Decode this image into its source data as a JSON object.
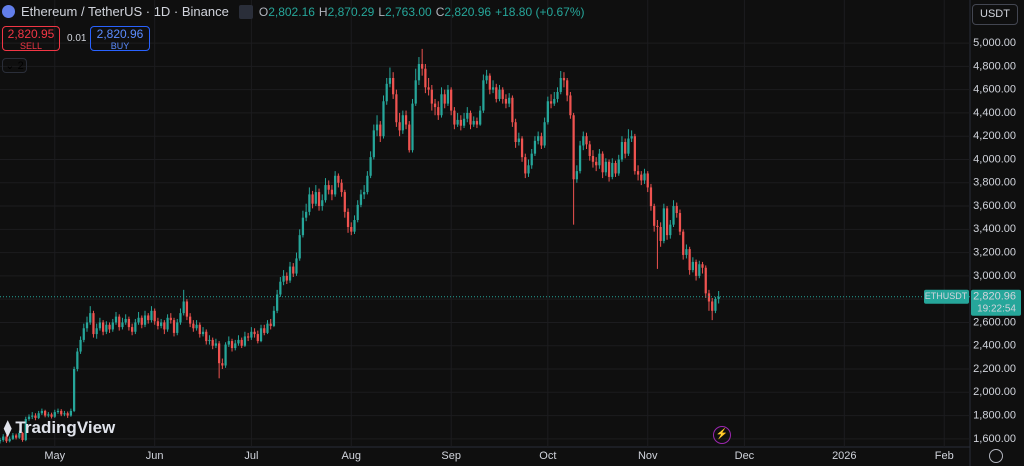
{
  "chart_data": {
    "type": "candlestick",
    "title": "Ethereum / TetherUS · 1D · Binance",
    "up_color": "#26a69a",
    "down_color": "#ef5350",
    "grid": true,
    "xlim": [
      0,
      301
    ],
    "ylim": [
      1530,
      5370
    ],
    "xticks": [
      {
        "value": 17,
        "label": "May"
      },
      {
        "value": 48,
        "label": "Jun"
      },
      {
        "value": 78,
        "label": "Jul"
      },
      {
        "value": 109,
        "label": "Aug"
      },
      {
        "value": 140,
        "label": "Sep"
      },
      {
        "value": 170,
        "label": "Oct"
      },
      {
        "value": 201,
        "label": "Nov"
      },
      {
        "value": 231,
        "label": "Dec"
      },
      {
        "value": 262,
        "label": "2026"
      },
      {
        "value": 293,
        "label": "Feb"
      }
    ],
    "yticks": [
      {
        "value": 1600,
        "label": "1,600.00"
      },
      {
        "value": 1800,
        "label": "1,800.00"
      },
      {
        "value": 2000,
        "label": "2,000.00"
      },
      {
        "value": 2200,
        "label": "2,200.00"
      },
      {
        "value": 2400,
        "label": "2,400.00"
      },
      {
        "value": 2600,
        "label": "2,600.00"
      },
      {
        "value": 2800,
        "label": "2,800.00"
      },
      {
        "value": 3000,
        "label": "3,000.00"
      },
      {
        "value": 3200,
        "label": "3,200.00"
      },
      {
        "value": 3400,
        "label": "3,400.00"
      },
      {
        "value": 3600,
        "label": "3,600.00"
      },
      {
        "value": 3800,
        "label": "3,800.00"
      },
      {
        "value": 4000,
        "label": "4,000.00"
      },
      {
        "value": 4200,
        "label": "4,200.00"
      },
      {
        "value": 4400,
        "label": "4,400.00"
      },
      {
        "value": 4600,
        "label": "4,600.00"
      },
      {
        "value": 4800,
        "label": "4,800.00"
      },
      {
        "value": 5000,
        "label": "5,000.00"
      }
    ],
    "ohlc": [
      [
        1580,
        1610,
        1560,
        1590
      ],
      [
        1590,
        1640,
        1575,
        1620
      ],
      [
        1620,
        1635,
        1565,
        1580
      ],
      [
        1580,
        1620,
        1570,
        1600
      ],
      [
        1600,
        1650,
        1590,
        1630
      ],
      [
        1630,
        1645,
        1595,
        1610
      ],
      [
        1610,
        1670,
        1600,
        1650
      ],
      [
        1650,
        1660,
        1575,
        1590
      ],
      [
        1590,
        1790,
        1580,
        1770
      ],
      [
        1770,
        1810,
        1755,
        1790
      ],
      [
        1790,
        1830,
        1770,
        1800
      ],
      [
        1800,
        1820,
        1760,
        1780
      ],
      [
        1780,
        1840,
        1770,
        1820
      ],
      [
        1820,
        1860,
        1805,
        1840
      ],
      [
        1840,
        1850,
        1785,
        1800
      ],
      [
        1800,
        1830,
        1785,
        1810
      ],
      [
        1810,
        1825,
        1775,
        1790
      ],
      [
        1790,
        1850,
        1780,
        1830
      ],
      [
        1830,
        1860,
        1815,
        1840
      ],
      [
        1840,
        1855,
        1795,
        1810
      ],
      [
        1810,
        1840,
        1795,
        1820
      ],
      [
        1820,
        1835,
        1780,
        1800
      ],
      [
        1800,
        1860,
        1790,
        1840
      ],
      [
        1840,
        2220,
        1830,
        2200
      ],
      [
        2200,
        2380,
        2180,
        2350
      ],
      [
        2350,
        2480,
        2330,
        2450
      ],
      [
        2450,
        2590,
        2430,
        2550
      ],
      [
        2550,
        2650,
        2520,
        2600
      ],
      [
        2600,
        2740,
        2580,
        2680
      ],
      [
        2680,
        2700,
        2470,
        2500
      ],
      [
        2500,
        2590,
        2460,
        2550
      ],
      [
        2550,
        2640,
        2530,
        2600
      ],
      [
        2600,
        2620,
        2490,
        2520
      ],
      [
        2520,
        2610,
        2500,
        2580
      ],
      [
        2580,
        2600,
        2510,
        2540
      ],
      [
        2540,
        2630,
        2520,
        2600
      ],
      [
        2600,
        2690,
        2580,
        2650
      ],
      [
        2650,
        2670,
        2530,
        2560
      ],
      [
        2560,
        2640,
        2540,
        2600
      ],
      [
        2600,
        2670,
        2580,
        2630
      ],
      [
        2630,
        2650,
        2530,
        2560
      ],
      [
        2560,
        2590,
        2490,
        2520
      ],
      [
        2520,
        2630,
        2500,
        2600
      ],
      [
        2600,
        2690,
        2580,
        2640
      ],
      [
        2640,
        2660,
        2550,
        2580
      ],
      [
        2580,
        2700,
        2560,
        2660
      ],
      [
        2660,
        2680,
        2590,
        2620
      ],
      [
        2620,
        2740,
        2600,
        2700
      ],
      [
        2700,
        2720,
        2580,
        2610
      ],
      [
        2610,
        2640,
        2540,
        2570
      ],
      [
        2570,
        2630,
        2550,
        2600
      ],
      [
        2600,
        2620,
        2500,
        2540
      ],
      [
        2540,
        2670,
        2520,
        2640
      ],
      [
        2640,
        2680,
        2590,
        2620
      ],
      [
        2620,
        2640,
        2480,
        2510
      ],
      [
        2510,
        2630,
        2490,
        2600
      ],
      [
        2600,
        2720,
        2580,
        2680
      ],
      [
        2680,
        2880,
        2660,
        2780
      ],
      [
        2780,
        2800,
        2620,
        2650
      ],
      [
        2650,
        2680,
        2560,
        2590
      ],
      [
        2590,
        2620,
        2520,
        2550
      ],
      [
        2550,
        2620,
        2530,
        2580
      ],
      [
        2580,
        2600,
        2470,
        2500
      ],
      [
        2500,
        2560,
        2480,
        2520
      ],
      [
        2520,
        2540,
        2410,
        2440
      ],
      [
        2440,
        2490,
        2410,
        2450
      ],
      [
        2450,
        2470,
        2370,
        2400
      ],
      [
        2400,
        2460,
        2380,
        2420
      ],
      [
        2420,
        2440,
        2120,
        2250
      ],
      [
        2250,
        2290,
        2200,
        2230
      ],
      [
        2230,
        2430,
        2210,
        2410
      ],
      [
        2410,
        2480,
        2390,
        2440
      ],
      [
        2440,
        2460,
        2350,
        2380
      ],
      [
        2380,
        2450,
        2360,
        2420
      ],
      [
        2420,
        2490,
        2400,
        2450
      ],
      [
        2450,
        2470,
        2380,
        2400
      ],
      [
        2400,
        2520,
        2390,
        2480
      ],
      [
        2480,
        2510,
        2440,
        2470
      ],
      [
        2470,
        2560,
        2450,
        2520
      ],
      [
        2520,
        2550,
        2470,
        2500
      ],
      [
        2500,
        2530,
        2420,
        2440
      ],
      [
        2440,
        2580,
        2430,
        2550
      ],
      [
        2550,
        2580,
        2490,
        2510
      ],
      [
        2510,
        2620,
        2500,
        2590
      ],
      [
        2590,
        2630,
        2540,
        2570
      ],
      [
        2570,
        2740,
        2560,
        2700
      ],
      [
        2700,
        2880,
        2680,
        2840
      ],
      [
        2840,
        2990,
        2820,
        2950
      ],
      [
        2950,
        3050,
        2920,
        3000
      ],
      [
        3000,
        3030,
        2930,
        2960
      ],
      [
        2960,
        3120,
        2940,
        3080
      ],
      [
        3080,
        3110,
        2990,
        3020
      ],
      [
        3020,
        3200,
        3000,
        3150
      ],
      [
        3150,
        3400,
        3130,
        3350
      ],
      [
        3350,
        3560,
        3330,
        3500
      ],
      [
        3500,
        3620,
        3470,
        3550
      ],
      [
        3550,
        3760,
        3520,
        3700
      ],
      [
        3700,
        3730,
        3580,
        3620
      ],
      [
        3620,
        3780,
        3600,
        3720
      ],
      [
        3720,
        3750,
        3560,
        3600
      ],
      [
        3600,
        3700,
        3560,
        3650
      ],
      [
        3650,
        3840,
        3630,
        3780
      ],
      [
        3780,
        3820,
        3700,
        3740
      ],
      [
        3740,
        3780,
        3650,
        3700
      ],
      [
        3700,
        3900,
        3680,
        3860
      ],
      [
        3860,
        3880,
        3760,
        3800
      ],
      [
        3800,
        3830,
        3680,
        3720
      ],
      [
        3720,
        3740,
        3500,
        3550
      ],
      [
        3550,
        3580,
        3370,
        3420
      ],
      [
        3420,
        3460,
        3350,
        3380
      ],
      [
        3380,
        3520,
        3360,
        3480
      ],
      [
        3480,
        3650,
        3460,
        3610
      ],
      [
        3610,
        3740,
        3590,
        3700
      ],
      [
        3700,
        3780,
        3660,
        3720
      ],
      [
        3720,
        3900,
        3700,
        3860
      ],
      [
        3860,
        4070,
        3840,
        4020
      ],
      [
        4020,
        4300,
        4000,
        4250
      ],
      [
        4250,
        4380,
        4200,
        4300
      ],
      [
        4300,
        4330,
        4150,
        4200
      ],
      [
        4200,
        4550,
        4180,
        4500
      ],
      [
        4500,
        4700,
        4470,
        4650
      ],
      [
        4650,
        4790,
        4620,
        4700
      ],
      [
        4700,
        4750,
        4520,
        4560
      ],
      [
        4560,
        4600,
        4280,
        4320
      ],
      [
        4320,
        4400,
        4200,
        4250
      ],
      [
        4250,
        4420,
        4220,
        4380
      ],
      [
        4380,
        4420,
        4260,
        4300
      ],
      [
        4300,
        4330,
        4060,
        4080
      ],
      [
        4080,
        4520,
        4060,
        4480
      ],
      [
        4480,
        4780,
        4460,
        4680
      ],
      [
        4680,
        4880,
        4640,
        4820
      ],
      [
        4820,
        4950,
        4720,
        4780
      ],
      [
        4780,
        4820,
        4570,
        4620
      ],
      [
        4620,
        4700,
        4550,
        4600
      ],
      [
        4600,
        4640,
        4420,
        4480
      ],
      [
        4480,
        4520,
        4380,
        4450
      ],
      [
        4450,
        4500,
        4340,
        4380
      ],
      [
        4380,
        4620,
        4360,
        4560
      ],
      [
        4560,
        4600,
        4440,
        4480
      ],
      [
        4480,
        4640,
        4460,
        4600
      ],
      [
        4600,
        4620,
        4380,
        4420
      ],
      [
        4420,
        4450,
        4260,
        4300
      ],
      [
        4300,
        4400,
        4280,
        4340
      ],
      [
        4340,
        4380,
        4250,
        4290
      ],
      [
        4290,
        4400,
        4270,
        4350
      ],
      [
        4350,
        4450,
        4320,
        4400
      ],
      [
        4400,
        4420,
        4260,
        4300
      ],
      [
        4300,
        4370,
        4280,
        4330
      ],
      [
        4330,
        4360,
        4270,
        4300
      ],
      [
        4300,
        4460,
        4290,
        4420
      ],
      [
        4420,
        4730,
        4400,
        4680
      ],
      [
        4680,
        4770,
        4650,
        4720
      ],
      [
        4720,
        4740,
        4560,
        4600
      ],
      [
        4600,
        4680,
        4570,
        4620
      ],
      [
        4620,
        4650,
        4490,
        4520
      ],
      [
        4520,
        4640,
        4500,
        4600
      ],
      [
        4600,
        4620,
        4480,
        4520
      ],
      [
        4520,
        4560,
        4440,
        4480
      ],
      [
        4480,
        4570,
        4450,
        4530
      ],
      [
        4530,
        4550,
        4280,
        4320
      ],
      [
        4320,
        4350,
        4100,
        4150
      ],
      [
        4150,
        4230,
        4120,
        4180
      ],
      [
        4180,
        4200,
        3980,
        4020
      ],
      [
        4020,
        4050,
        3840,
        3880
      ],
      [
        3880,
        4000,
        3850,
        3950
      ],
      [
        3950,
        4090,
        3920,
        4050
      ],
      [
        4050,
        4200,
        4030,
        4160
      ],
      [
        4160,
        4240,
        4130,
        4200
      ],
      [
        4200,
        4230,
        4090,
        4120
      ],
      [
        4120,
        4360,
        4100,
        4320
      ],
      [
        4320,
        4540,
        4300,
        4500
      ],
      [
        4500,
        4560,
        4440,
        4480
      ],
      [
        4480,
        4580,
        4460,
        4520
      ],
      [
        4520,
        4620,
        4490,
        4580
      ],
      [
        4580,
        4760,
        4560,
        4700
      ],
      [
        4700,
        4750,
        4620,
        4680
      ],
      [
        4680,
        4700,
        4500,
        4550
      ],
      [
        4550,
        4580,
        4350,
        4380
      ],
      [
        4380,
        4400,
        3440,
        3830
      ],
      [
        3830,
        3950,
        3800,
        3900
      ],
      [
        3900,
        4160,
        3880,
        4120
      ],
      [
        4120,
        4240,
        4080,
        4200
      ],
      [
        4200,
        4230,
        4090,
        4130
      ],
      [
        4130,
        4160,
        3990,
        4030
      ],
      [
        4030,
        4080,
        3930,
        3980
      ],
      [
        3980,
        4020,
        3900,
        3950
      ],
      [
        3950,
        4090,
        3920,
        4050
      ],
      [
        4050,
        4070,
        3840,
        3890
      ],
      [
        3890,
        4010,
        3860,
        3980
      ],
      [
        3980,
        4000,
        3810,
        3850
      ],
      [
        3850,
        4010,
        3830,
        3970
      ],
      [
        3970,
        3990,
        3850,
        3880
      ],
      [
        3880,
        4040,
        3860,
        4000
      ],
      [
        4000,
        4200,
        3980,
        4150
      ],
      [
        4150,
        4180,
        4010,
        4050
      ],
      [
        4050,
        4260,
        4030,
        4180
      ],
      [
        4180,
        4250,
        4150,
        4200
      ],
      [
        4200,
        4220,
        3870,
        3900
      ],
      [
        3900,
        3950,
        3820,
        3870
      ],
      [
        3870,
        3900,
        3780,
        3820
      ],
      [
        3820,
        3920,
        3790,
        3880
      ],
      [
        3880,
        3900,
        3720,
        3760
      ],
      [
        3760,
        3790,
        3560,
        3600
      ],
      [
        3600,
        3620,
        3380,
        3430
      ],
      [
        3430,
        3480,
        3060,
        3420
      ],
      [
        3420,
        3460,
        3250,
        3300
      ],
      [
        3300,
        3620,
        3280,
        3580
      ],
      [
        3580,
        3600,
        3310,
        3350
      ],
      [
        3350,
        3480,
        3320,
        3440
      ],
      [
        3440,
        3650,
        3420,
        3600
      ],
      [
        3600,
        3630,
        3500,
        3540
      ],
      [
        3540,
        3570,
        3350,
        3380
      ],
      [
        3380,
        3400,
        3140,
        3180
      ],
      [
        3180,
        3270,
        3150,
        3230
      ],
      [
        3230,
        3250,
        3010,
        3050
      ],
      [
        3050,
        3160,
        3030,
        3120
      ],
      [
        3120,
        3140,
        2960,
        3000
      ],
      [
        3000,
        3130,
        2980,
        3100
      ],
      [
        3100,
        3120,
        3020,
        3070
      ],
      [
        3070,
        3090,
        2810,
        2850
      ],
      [
        2850,
        2880,
        2700,
        2780
      ],
      [
        2780,
        2810,
        2620,
        2700
      ],
      [
        2700,
        2820,
        2680,
        2802.16
      ],
      [
        2802.16,
        2870.29,
        2763.0,
        2820.96
      ]
    ],
    "last_price": {
      "symbol": "ETHUSDT",
      "value": 2820.96,
      "label": "2,820.96",
      "countdown": "19:22:54"
    }
  },
  "header": {
    "ohlc": [
      {
        "label": "O",
        "value": "2,802.16"
      },
      {
        "label": "H",
        "value": "2,870.29"
      },
      {
        "label": "L",
        "value": "2,763.00"
      },
      {
        "label": "C",
        "value": "2,820.96"
      }
    ],
    "change": "+18.80 (+0.67%)"
  },
  "trade": {
    "sell_price": "2,820.95",
    "sell": "SELL",
    "spread": "0.01",
    "buy_price": "2,820.96",
    "buy": "BUY"
  },
  "indicators_toggle": "2",
  "currency": "USDT",
  "logo": "TradingView"
}
